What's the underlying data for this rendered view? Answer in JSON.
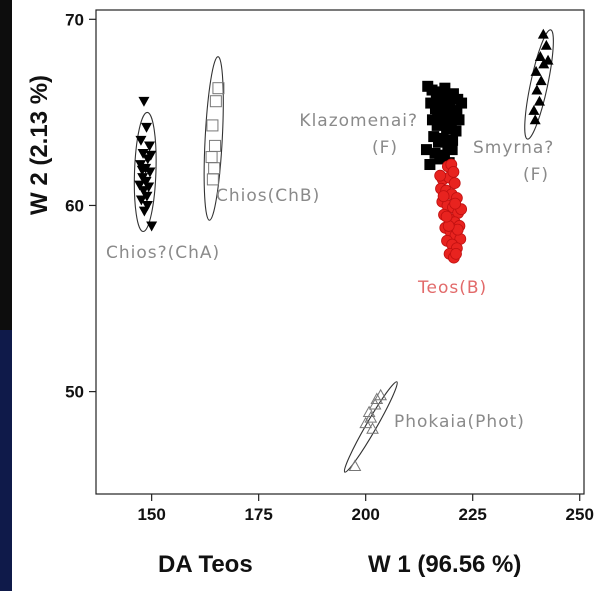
{
  "chart_data": {
    "type": "scatter",
    "title": "",
    "xlabel_left": "DA Teos",
    "xlabel": "W 1 (96.56 %)",
    "ylabel": "W 2 (2.13 %)",
    "xlim": [
      137,
      251
    ],
    "ylim": [
      44.5,
      70.5
    ],
    "xticks": [
      150,
      175,
      200,
      225,
      250
    ],
    "yticks": [
      50,
      60,
      70
    ],
    "grid": false,
    "groups": [
      {
        "label": "Chios?(ChA)",
        "color": "#000000",
        "marker": "triangle-down",
        "ellipse": {
          "cx": 148.5,
          "cy": 61.8,
          "rx": 2.5,
          "ry": 3.2
        },
        "points": [
          [
            148.2,
            65.6
          ],
          [
            148.8,
            64.2
          ],
          [
            147.5,
            63.5
          ],
          [
            149.5,
            63.2
          ],
          [
            148.0,
            62.8
          ],
          [
            149.1,
            62.5
          ],
          [
            147.4,
            62.2
          ],
          [
            148.6,
            62.0
          ],
          [
            149.6,
            61.8
          ],
          [
            147.9,
            61.5
          ],
          [
            148.7,
            61.3
          ],
          [
            147.2,
            61.1
          ],
          [
            149.3,
            61.0
          ],
          [
            148.1,
            60.8
          ],
          [
            148.9,
            60.5
          ],
          [
            147.6,
            60.3
          ],
          [
            149.0,
            60.0
          ],
          [
            148.3,
            59.7
          ],
          [
            147.8,
            61.9
          ],
          [
            149.8,
            62.7
          ],
          [
            150.0,
            58.9
          ]
        ]
      },
      {
        "label": "Chios(ChB)",
        "color": "#000000",
        "marker": "square-open",
        "ellipse": {
          "cx": 164.5,
          "cy": 63.6,
          "rx": 2.0,
          "ry": 4.4
        },
        "points": [
          [
            165.6,
            66.3
          ],
          [
            165.0,
            65.6
          ],
          [
            164.2,
            64.3
          ],
          [
            164.8,
            63.2
          ],
          [
            164.0,
            62.6
          ],
          [
            164.6,
            62.0
          ],
          [
            164.3,
            61.4
          ]
        ]
      },
      {
        "label": "Klazomenai?",
        "label2": "(F)",
        "color": "#000000",
        "marker": "square",
        "ellipse": null,
        "points": [
          [
            214.5,
            66.4
          ],
          [
            215.5,
            66.2
          ],
          [
            216.5,
            65.9
          ],
          [
            217.5,
            66.1
          ],
          [
            218.5,
            66.3
          ],
          [
            219.5,
            65.8
          ],
          [
            220.5,
            66.0
          ],
          [
            221.5,
            65.7
          ],
          [
            215.2,
            65.5
          ],
          [
            216.3,
            65.2
          ],
          [
            217.4,
            65.4
          ],
          [
            218.5,
            65.0
          ],
          [
            219.6,
            65.3
          ],
          [
            220.7,
            64.9
          ],
          [
            221.3,
            65.1
          ],
          [
            215.6,
            64.6
          ],
          [
            216.7,
            64.3
          ],
          [
            217.8,
            64.5
          ],
          [
            218.9,
            64.1
          ],
          [
            220.0,
            64.4
          ],
          [
            221.1,
            64.0
          ],
          [
            215.9,
            63.7
          ],
          [
            217.0,
            63.4
          ],
          [
            218.1,
            63.6
          ],
          [
            219.2,
            63.2
          ],
          [
            220.3,
            63.5
          ],
          [
            216.2,
            62.8
          ],
          [
            217.3,
            62.5
          ],
          [
            218.4,
            62.7
          ],
          [
            219.5,
            62.3
          ],
          [
            216.8,
            64.8
          ],
          [
            218.0,
            65.7
          ],
          [
            219.0,
            64.7
          ],
          [
            220.2,
            63.0
          ],
          [
            221.8,
            64.6
          ],
          [
            222.4,
            65.5
          ],
          [
            215.0,
            62.2
          ],
          [
            214.2,
            63.0
          ]
        ]
      },
      {
        "label": "Smyrna?",
        "label2": "(F)",
        "color": "#000000",
        "marker": "triangle-up",
        "ellipse": {
          "cx": 240.5,
          "cy": 66.5,
          "rx": 2.0,
          "ry": 3.0
        },
        "points": [
          [
            241.5,
            69.2
          ],
          [
            242.2,
            68.6
          ],
          [
            240.8,
            68.0
          ],
          [
            241.6,
            67.6
          ],
          [
            239.8,
            67.2
          ],
          [
            241.0,
            66.7
          ],
          [
            240.0,
            66.2
          ],
          [
            240.6,
            65.6
          ],
          [
            239.3,
            65.1
          ],
          [
            242.6,
            67.8
          ],
          [
            239.6,
            64.6
          ]
        ]
      },
      {
        "label": "Teos(B)",
        "color": "#e8231f",
        "marker": "circle",
        "ellipse": null,
        "points": [
          [
            219.2,
            62.1
          ],
          [
            218.0,
            61.4
          ],
          [
            219.5,
            61.5
          ],
          [
            220.8,
            61.2
          ],
          [
            217.6,
            60.9
          ],
          [
            218.8,
            60.8
          ],
          [
            220.1,
            60.6
          ],
          [
            221.3,
            60.4
          ],
          [
            217.9,
            60.2
          ],
          [
            219.1,
            60.0
          ],
          [
            220.4,
            59.9
          ],
          [
            221.6,
            59.6
          ],
          [
            218.3,
            59.5
          ],
          [
            219.5,
            59.3
          ],
          [
            220.8,
            59.1
          ],
          [
            221.9,
            58.9
          ],
          [
            218.6,
            58.8
          ],
          [
            219.8,
            58.6
          ],
          [
            221.0,
            58.4
          ],
          [
            222.1,
            58.2
          ],
          [
            219.0,
            58.1
          ],
          [
            220.2,
            57.9
          ],
          [
            221.3,
            57.7
          ],
          [
            219.6,
            57.4
          ],
          [
            220.6,
            57.2
          ],
          [
            221.5,
            58.7
          ],
          [
            218.2,
            60.5
          ],
          [
            222.3,
            59.8
          ],
          [
            217.4,
            61.6
          ],
          [
            220.0,
            62.2
          ],
          [
            219.4,
            58.9
          ],
          [
            220.9,
            60.1
          ],
          [
            221.1,
            57.4
          ],
          [
            218.9,
            59.4
          ],
          [
            220.5,
            61.8
          ]
        ]
      },
      {
        "label": "Phokaia(Phot)",
        "color": "#000000",
        "marker": "triangle-open",
        "ellipse": {
          "cx": 201.2,
          "cy": 48.1,
          "rx": 1.2,
          "ry": 2.8
        },
        "points": [
          [
            197.5,
            46.0
          ],
          [
            200.0,
            48.3
          ],
          [
            201.2,
            48.6
          ],
          [
            202.2,
            49.3
          ],
          [
            202.6,
            49.6
          ],
          [
            201.6,
            48.0
          ],
          [
            203.5,
            49.8
          ],
          [
            200.8,
            48.9
          ]
        ]
      }
    ]
  }
}
